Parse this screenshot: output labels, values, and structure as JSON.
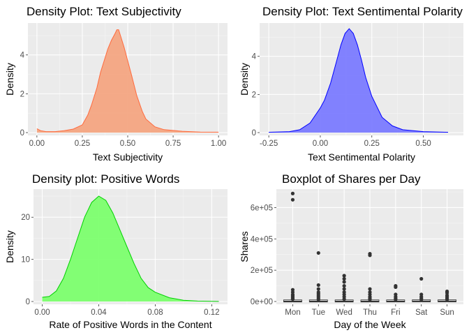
{
  "chart_data": [
    {
      "type": "area",
      "title": "Density Plot: Text Subjectivity",
      "xlabel": "Text Subjectivity",
      "ylabel": "Density",
      "xlim": [
        0,
        1
      ],
      "ylim": [
        0,
        5.5
      ],
      "xticks": [
        0,
        0.25,
        0.5,
        0.75,
        1
      ],
      "xtick_labels": [
        "0.00",
        "0.25",
        "0.50",
        "0.75",
        "1.00"
      ],
      "yticks": [
        0,
        2,
        4
      ],
      "ytick_labels": [
        "0",
        "2",
        "4"
      ],
      "fill": "#f4a582",
      "stroke": "#ff6a3d",
      "grid": true,
      "x": [
        0,
        0.02,
        0.05,
        0.1,
        0.15,
        0.2,
        0.25,
        0.28,
        0.3,
        0.33,
        0.35,
        0.37,
        0.39,
        0.41,
        0.43,
        0.44,
        0.45,
        0.46,
        0.47,
        0.48,
        0.5,
        0.52,
        0.55,
        0.58,
        0.6,
        0.65,
        0.7,
        0.8,
        0.9,
        1.0
      ],
      "y": [
        0.2,
        0.1,
        0.05,
        0.05,
        0.1,
        0.18,
        0.4,
        0.9,
        1.4,
        2.3,
        3.1,
        3.7,
        4.3,
        4.75,
        5.1,
        5.3,
        5.3,
        5.0,
        4.7,
        4.4,
        3.7,
        3.0,
        1.9,
        1.1,
        0.7,
        0.3,
        0.15,
        0.07,
        0.03,
        0.02
      ]
    },
    {
      "type": "area",
      "title": "Density Plot: Text Sentimental Polarity",
      "xlabel": "Text Sentimental Polarity",
      "ylabel": "Density",
      "xlim": [
        -0.25,
        0.65
      ],
      "ylim": [
        0,
        5.6
      ],
      "xticks": [
        -0.25,
        0,
        0.25,
        0.5
      ],
      "xtick_labels": [
        "-0.25",
        "0.00",
        "0.25",
        "0.50"
      ],
      "yticks": [
        0,
        2,
        4
      ],
      "ytick_labels": [
        "0",
        "2",
        "4"
      ],
      "fill": "#7b7bff",
      "stroke": "#0000ff",
      "grid": true,
      "x": [
        -0.25,
        -0.15,
        -0.1,
        -0.05,
        0.0,
        0.02,
        0.05,
        0.08,
        0.1,
        0.12,
        0.14,
        0.16,
        0.18,
        0.2,
        0.22,
        0.25,
        0.3,
        0.35,
        0.4,
        0.5,
        0.62
      ],
      "y": [
        0.02,
        0.05,
        0.15,
        0.5,
        1.3,
        1.7,
        2.6,
        3.8,
        4.6,
        5.2,
        5.45,
        5.2,
        4.6,
        3.8,
        2.9,
        1.9,
        0.8,
        0.35,
        0.15,
        0.05,
        0.02
      ]
    },
    {
      "type": "area",
      "title": "Density plot: Positive Words",
      "xlabel": "Rate of Positive Words in the Content",
      "ylabel": "Density",
      "xlim": [
        0,
        0.125
      ],
      "ylim": [
        0,
        26
      ],
      "xticks": [
        0,
        0.04,
        0.08,
        0.12
      ],
      "xtick_labels": [
        "0.00",
        "0.04",
        "0.08",
        "0.12"
      ],
      "yticks": [
        0,
        10,
        20
      ],
      "ytick_labels": [
        "0",
        "10",
        "20"
      ],
      "fill": "#7cff6e",
      "stroke": "#00d000",
      "grid": true,
      "x": [
        0,
        0.005,
        0.01,
        0.015,
        0.02,
        0.025,
        0.03,
        0.035,
        0.04,
        0.045,
        0.05,
        0.055,
        0.06,
        0.065,
        0.07,
        0.075,
        0.08,
        0.09,
        0.1,
        0.11,
        0.125
      ],
      "y": [
        1.0,
        1.2,
        2.5,
        5.5,
        10,
        15,
        20,
        23.5,
        25,
        24,
        21,
        17,
        13,
        9,
        5.5,
        3.3,
        2.2,
        0.9,
        0.3,
        0.1,
        0.02
      ]
    },
    {
      "type": "box",
      "title": "Boxplot of Shares per Day",
      "xlabel": "Day of the Week",
      "ylabel": "Shares",
      "categories": [
        "Mon",
        "Tue",
        "Wed",
        "Thu",
        "Fri",
        "Sat",
        "Sun"
      ],
      "ylim": [
        0,
        700000
      ],
      "yticks": [
        0,
        200000,
        400000,
        600000
      ],
      "ytick_labels": [
        "0e+00",
        "2e+05",
        "4e+05",
        "6e+05"
      ],
      "grid": true,
      "medians": [
        1400,
        1300,
        1300,
        1300,
        1500,
        2000,
        1900
      ],
      "outliers": [
        [
          690000,
          650000,
          75000,
          60000,
          45000,
          38000,
          30000,
          22000,
          15000
        ],
        [
          310000,
          105000,
          80000,
          60000,
          50000,
          40000,
          30000,
          20000,
          12000
        ],
        [
          165000,
          145000,
          125000,
          100000,
          80000,
          60000,
          45000,
          30000,
          15000
        ],
        [
          305000,
          295000,
          80000,
          60000,
          45000,
          30000,
          20000,
          12000
        ],
        [
          100000,
          92000,
          45000,
          30000,
          20000,
          12000
        ],
        [
          145000,
          45000,
          30000,
          20000,
          12000
        ],
        [
          65000,
          55000,
          40000,
          30000,
          20000,
          12000
        ]
      ]
    }
  ]
}
